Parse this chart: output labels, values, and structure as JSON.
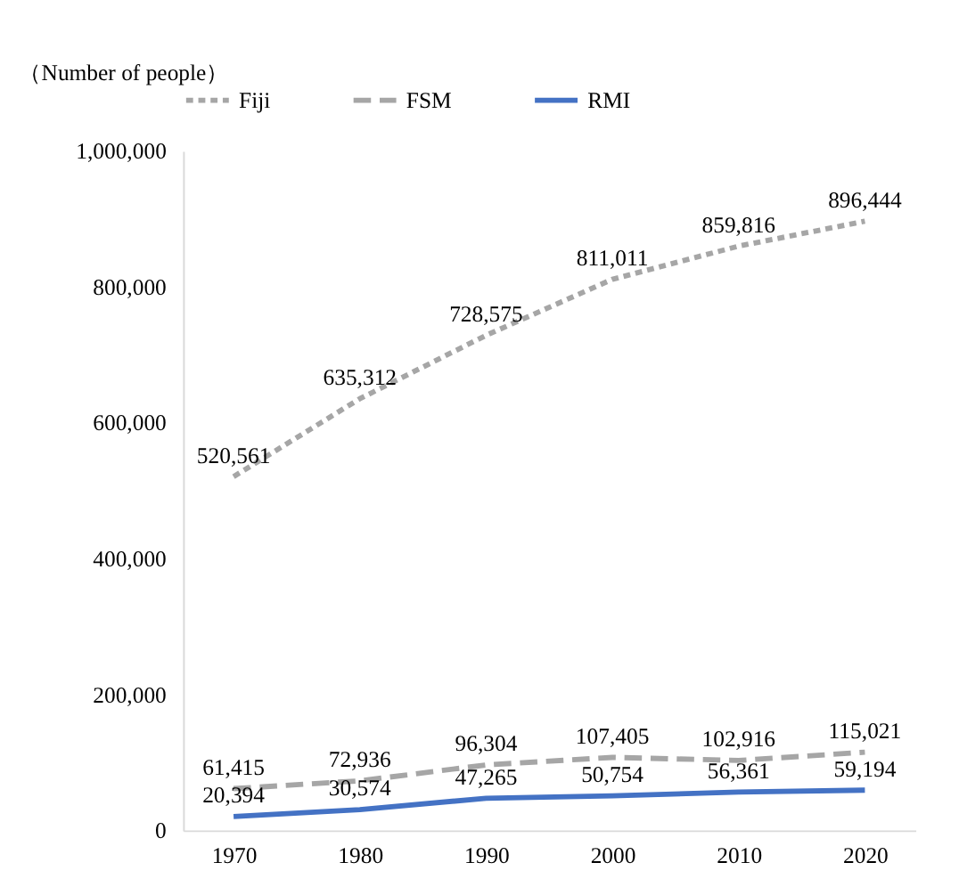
{
  "chart_data": {
    "type": "line",
    "ylabel": "（Number of people）",
    "categories": [
      "1970",
      "1980",
      "1990",
      "2000",
      "2010",
      "2020"
    ],
    "series": [
      {
        "name": "Fiji",
        "color": "#a6a6a6",
        "line_style": "dotted",
        "values": [
          520561,
          635312,
          728575,
          811011,
          859816,
          896444
        ],
        "value_labels": [
          "520,561",
          "635,312",
          "728,575",
          "811,011",
          "859,816",
          "896,444"
        ]
      },
      {
        "name": "FSM",
        "color": "#a6a6a6",
        "line_style": "dashed",
        "values": [
          61415,
          72936,
          96304,
          107405,
          102916,
          115021
        ],
        "value_labels": [
          "61,415",
          "72,936",
          "96,304",
          "107,405",
          "102,916",
          "115,021"
        ]
      },
      {
        "name": "RMI",
        "color": "#4472c4",
        "line_style": "solid",
        "values": [
          20394,
          30574,
          47265,
          50754,
          56361,
          59194
        ],
        "value_labels": [
          "20,394",
          "30,574",
          "47,265",
          "50,754",
          "56,361",
          "59,194"
        ]
      }
    ],
    "ylim": [
      0,
      1000000
    ],
    "yticks": [
      {
        "value": 0,
        "label": "0"
      },
      {
        "value": 200000,
        "label": "200,000"
      },
      {
        "value": 400000,
        "label": "400,000"
      },
      {
        "value": 600000,
        "label": "600,000"
      },
      {
        "value": 800000,
        "label": "800,000"
      },
      {
        "value": 1000000,
        "label": "1,000,000"
      }
    ],
    "grid": false,
    "legend": "top",
    "marker": "none"
  }
}
